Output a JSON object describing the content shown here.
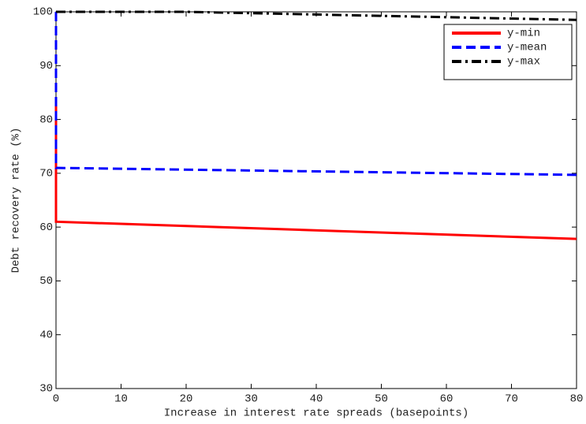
{
  "chart_data": {
    "type": "line",
    "xlabel": "Increase in interest rate spreads (basepoints)",
    "ylabel": "Debt recovery rate (%)",
    "xlim": [
      0,
      80
    ],
    "xticks": [
      0,
      10,
      20,
      30,
      40,
      50,
      60,
      70,
      80
    ],
    "ylim": [
      30,
      100
    ],
    "yticks": [
      30,
      40,
      50,
      60,
      70,
      80,
      90,
      100
    ],
    "legend": "upper right",
    "series": [
      {
        "name": "y-min",
        "color": "#ff0000",
        "style": "solid",
        "x": [
          0,
          0,
          80
        ],
        "values": [
          83,
          61,
          57.8
        ]
      },
      {
        "name": "y-mean",
        "color": "#0000ff",
        "style": "dashed",
        "x": [
          0,
          0,
          80
        ],
        "values": [
          100,
          71,
          69.7
        ]
      },
      {
        "name": "y-max",
        "color": "#000000",
        "style": "dashdot",
        "x": [
          0,
          20,
          80
        ],
        "values": [
          100,
          100,
          98.5
        ]
      }
    ]
  }
}
